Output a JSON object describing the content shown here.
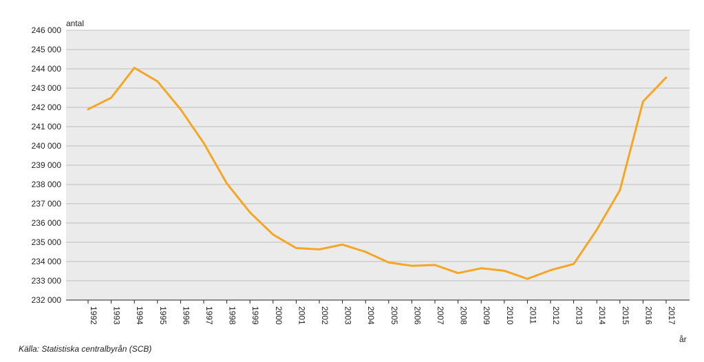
{
  "chart_data": {
    "type": "line",
    "ylabel": "antal",
    "xlabel": "år",
    "ylim": [
      232000,
      246000
    ],
    "y_ticks": [
      232000,
      233000,
      234000,
      235000,
      236000,
      237000,
      238000,
      239000,
      240000,
      241000,
      242000,
      243000,
      244000,
      245000,
      246000
    ],
    "y_tick_labels": [
      "232 000",
      "233 000",
      "234 000",
      "235 000",
      "236 000",
      "237 000",
      "238 000",
      "239 000",
      "240 000",
      "241 000",
      "242 000",
      "243 000",
      "244 000",
      "245 000",
      "246 000"
    ],
    "categories": [
      "1992",
      "1993",
      "1994",
      "1995",
      "1996",
      "1997",
      "1998",
      "1999",
      "2000",
      "2001",
      "2002",
      "2003",
      "2004",
      "2005",
      "2006",
      "2007",
      "2008",
      "2009",
      "2010",
      "2011",
      "2012",
      "2013",
      "2014",
      "2015",
      "2016",
      "2017"
    ],
    "series": [
      {
        "values": [
          241900,
          242500,
          244050,
          243350,
          241900,
          240150,
          238050,
          236550,
          235400,
          234700,
          234630,
          234880,
          234500,
          233950,
          233780,
          233820,
          233400,
          233650,
          233520,
          233100,
          233550,
          233870,
          235650,
          237700,
          242300,
          243550
        ],
        "color": "#f5a623"
      }
    ],
    "grid": true,
    "plot_background": "#ebebeb",
    "grid_color": "#bdbdbd"
  },
  "source": "Källa: Statistiska centralbyrån (SCB)"
}
